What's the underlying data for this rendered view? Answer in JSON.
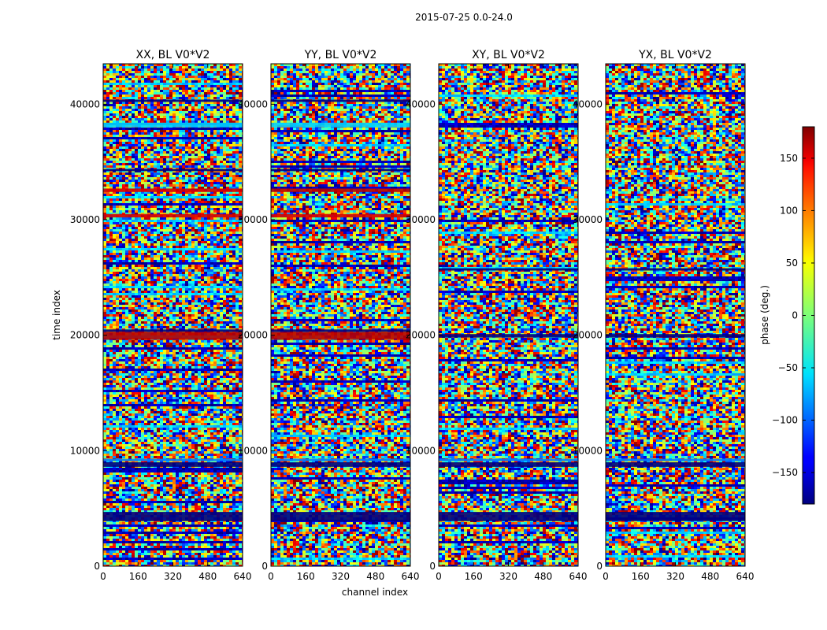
{
  "figure": {
    "suptitle": "2015-07-25 0.0-24.0"
  },
  "chart_data": {
    "type": "heatmap",
    "title": "2015-07-25 0.0-24.0",
    "xlabel": "channel index",
    "ylabel": "time index",
    "xlim": [
      0,
      640
    ],
    "ylim": [
      0,
      43500
    ],
    "x_ticks": [
      0,
      160,
      320,
      480,
      640
    ],
    "y_ticks": [
      0,
      10000,
      20000,
      30000,
      40000
    ],
    "colorscale": "jet",
    "colorbar": {
      "label": "phase (deg.)",
      "range": [
        -180,
        180
      ],
      "ticks": [
        -150,
        -100,
        -50,
        0,
        50,
        100,
        150
      ],
      "tick_labels": [
        "−150",
        "−100",
        "−50",
        "0",
        "50",
        "100",
        "150"
      ]
    },
    "panels": [
      {
        "title": "XX, BL V0*V2",
        "bands": [
          {
            "t0": 3900,
            "t1": 4700,
            "value": -180
          },
          {
            "t0": 8600,
            "t1": 9000,
            "value": -180
          },
          {
            "t0": 9100,
            "t1": 9300,
            "value": -90
          },
          {
            "t0": 19600,
            "t1": 20300,
            "value": 160
          },
          {
            "t0": 20300,
            "t1": 20500,
            "value": -180
          },
          {
            "t0": 30200,
            "t1": 30500,
            "value": 150
          },
          {
            "t0": 32400,
            "t1": 32700,
            "value": 150
          },
          {
            "t0": 34200,
            "t1": 34400,
            "value": -180
          },
          {
            "t0": 38000,
            "t1": 38400,
            "value": -60
          },
          {
            "t0": 40200,
            "t1": 40400,
            "value": -180
          }
        ]
      },
      {
        "title": "YY, BL V0*V2",
        "bands": [
          {
            "t0": 3900,
            "t1": 4700,
            "value": -180
          },
          {
            "t0": 8600,
            "t1": 9000,
            "value": -180
          },
          {
            "t0": 9100,
            "t1": 9300,
            "value": -90
          },
          {
            "t0": 19600,
            "t1": 20300,
            "value": 160
          },
          {
            "t0": 20300,
            "t1": 20500,
            "value": -180
          },
          {
            "t0": 30200,
            "t1": 30500,
            "value": 150
          },
          {
            "t0": 32400,
            "t1": 32700,
            "value": 160
          },
          {
            "t0": 34200,
            "t1": 34400,
            "value": -180
          },
          {
            "t0": 38000,
            "t1": 38400,
            "value": -60
          },
          {
            "t0": 40200,
            "t1": 40400,
            "value": -180
          }
        ]
      },
      {
        "title": "XY, BL V0*V2",
        "bands": [
          {
            "t0": 3900,
            "t1": 4700,
            "value": -180
          },
          {
            "t0": 8600,
            "t1": 9000,
            "value": -180
          },
          {
            "t0": 9100,
            "t1": 9300,
            "value": -90
          },
          {
            "t0": 19800,
            "t1": 20100,
            "value": -180
          },
          {
            "t0": 25600,
            "t1": 25800,
            "value": -180
          }
        ]
      },
      {
        "title": "YX, BL V0*V2",
        "bands": [
          {
            "t0": 3900,
            "t1": 4700,
            "value": -180
          },
          {
            "t0": 8600,
            "t1": 9000,
            "value": -180
          },
          {
            "t0": 9100,
            "t1": 9300,
            "value": -90
          },
          {
            "t0": 19800,
            "t1": 20100,
            "value": -180
          },
          {
            "t0": 25600,
            "t1": 25800,
            "value": -180
          }
        ]
      }
    ]
  }
}
